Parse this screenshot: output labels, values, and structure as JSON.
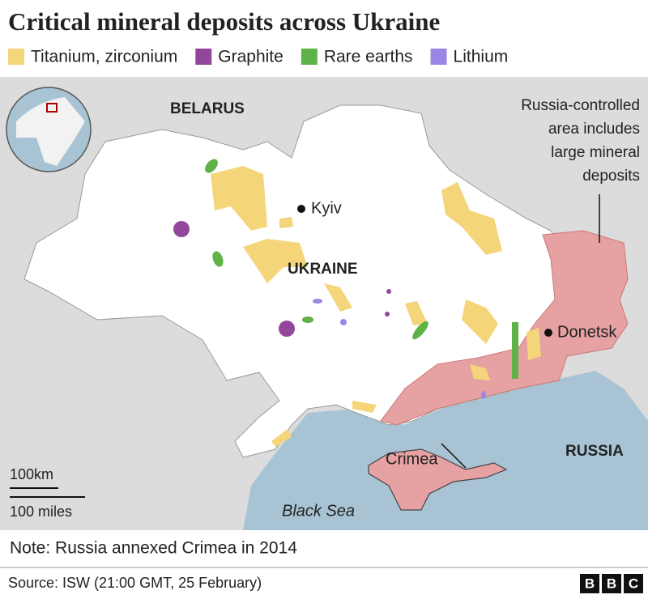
{
  "header": {
    "title": "Critical mineral deposits across Ukraine"
  },
  "legend": [
    {
      "label": "Titanium, zirconium",
      "color": "#f5d57a"
    },
    {
      "label": "Graphite",
      "color": "#93479c"
    },
    {
      "label": "Rare earths",
      "color": "#5fb246"
    },
    {
      "label": "Lithium",
      "color": "#9b86e6"
    }
  ],
  "map": {
    "labels": {
      "belarus": "BELARUS",
      "kyiv": "Kyiv",
      "ukraine": "UKRAINE",
      "donetsk": "Donetsk",
      "russia": "RUSSIA",
      "crimea": "Crimea",
      "black_sea": "Black Sea"
    },
    "annotation": [
      "Russia-controlled",
      "area includes",
      "large mineral",
      "deposits"
    ],
    "scale": {
      "km": "100km",
      "miles": "100 miles"
    }
  },
  "note": "Note: Russia annexed Crimea in 2014",
  "source": "Source: ISW (21:00 GMT, 25 February)",
  "logo": [
    "B",
    "B",
    "C"
  ]
}
